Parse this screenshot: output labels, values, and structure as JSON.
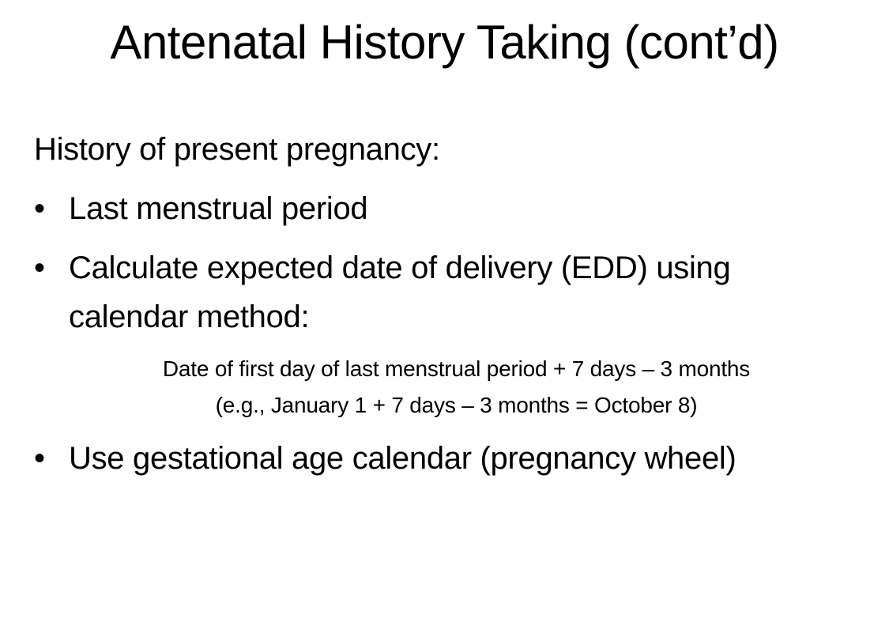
{
  "slide": {
    "title": "Antenatal History Taking (cont’d)",
    "heading": "History of present pregnancy:",
    "bullet_glyph": "•",
    "bullets": [
      {
        "text": "Last menstrual period"
      },
      {
        "text": "Calculate expected date of delivery (EDD) using calendar method:"
      },
      {
        "text": "Use gestational age calendar (pregnancy wheel)"
      }
    ],
    "formula": {
      "line1": "Date of first day of last menstrual period + 7 days – 3 months",
      "line2": "(e.g., January 1 + 7 days – 3 months = October 8)"
    }
  }
}
